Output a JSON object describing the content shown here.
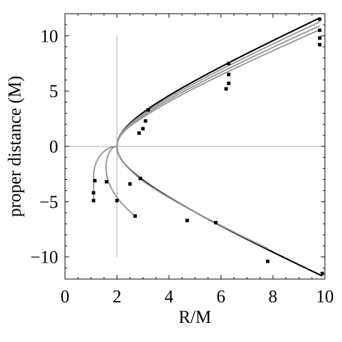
{
  "chart_data": {
    "type": "line",
    "xlabel": "R/M",
    "ylabel": "proper distance (M)",
    "xlim": [
      0,
      10
    ],
    "ylim": [
      -12,
      12
    ],
    "x_ticks": [
      0,
      2,
      4,
      6,
      8,
      10
    ],
    "x_tick_labels": [
      "0",
      "2",
      "4",
      "6",
      "8",
      "10"
    ],
    "y_ticks": [
      -10,
      -5,
      0,
      5,
      10
    ],
    "y_tick_labels": [
      "−10",
      "−5",
      "0",
      "5",
      "10"
    ],
    "grid": false,
    "reference_lines": {
      "horizontal_y": 0,
      "vertical": {
        "x": 2,
        "y_from": -10,
        "y_to": 10
      }
    },
    "series_colors": {
      "highlight": "#000000",
      "other": "#999999"
    },
    "series": [
      {
        "id": "s1",
        "style": "highlight",
        "family": "schwarzschild",
        "upper": {
          "a": 0.0,
          "r_end": 9.8
        },
        "lower": {
          "a": 0.0,
          "r_end": 9.9
        },
        "markers": [
          [
            3.2,
            3.3
          ],
          [
            6.3,
            7.5
          ],
          [
            9.8,
            11.5
          ],
          [
            2.9,
            -2.9
          ],
          [
            5.8,
            -6.9
          ],
          [
            9.9,
            -11.5
          ]
        ]
      },
      {
        "id": "s2",
        "style": "other",
        "family": "schwarzschild",
        "upper": {
          "a": 0.3,
          "r_end": 9.8
        },
        "lower": {
          "a": 0.3,
          "r_end": 7.8
        },
        "markers": [
          [
            3.1,
            2.3
          ],
          [
            6.3,
            6.5
          ],
          [
            9.8,
            10.5
          ],
          [
            2.5,
            -3.4
          ],
          [
            4.7,
            -6.7
          ],
          [
            7.8,
            -10.4
          ]
        ]
      },
      {
        "id": "s3",
        "style": "other",
        "family": "schwarzschild",
        "upper": {
          "a": 0.6,
          "r_end": 9.8
        },
        "lower": {
          "a": 0.6,
          "r_min": 1.58,
          "r_turn_end": 2.7
        },
        "markers": [
          [
            3.0,
            1.6
          ],
          [
            6.3,
            5.7
          ],
          [
            9.8,
            9.8
          ],
          [
            1.6,
            -3.2
          ],
          [
            2.0,
            -4.9
          ],
          [
            2.7,
            -6.3
          ]
        ]
      },
      {
        "id": "s4",
        "style": "other",
        "family": "schwarzschild",
        "upper": {
          "a": 0.9,
          "r_end": 9.8
        },
        "lower": {
          "a": 0.9,
          "r_min": 1.1,
          "r_turn_end": 1.2
        },
        "markers": [
          [
            2.85,
            1.2
          ],
          [
            6.2,
            5.2
          ],
          [
            9.8,
            9.2
          ],
          [
            1.15,
            -3.1
          ],
          [
            1.1,
            -4.2
          ],
          [
            1.1,
            -4.9
          ]
        ]
      }
    ]
  }
}
